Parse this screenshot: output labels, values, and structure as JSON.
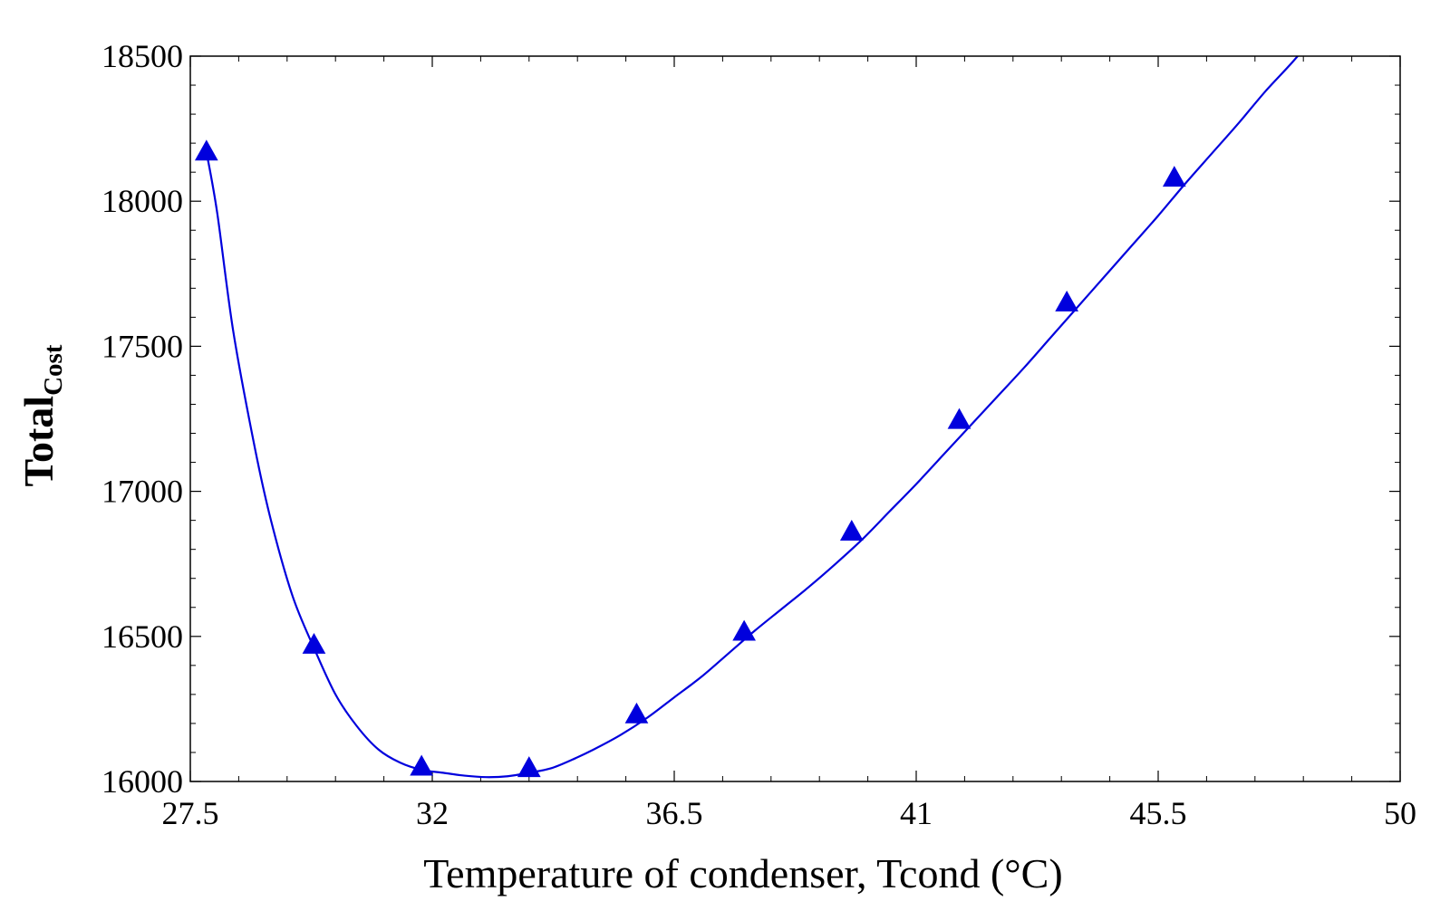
{
  "chart_data": {
    "type": "line",
    "title": "",
    "xlabel": "Temperature of condenser, Tcond (°C)",
    "ylabel": {
      "main": "Total",
      "subscript": "Cost"
    },
    "xlim": [
      27.5,
      50
    ],
    "ylim": [
      16000,
      18500
    ],
    "x_ticks": [
      27.5,
      32,
      36.5,
      41,
      45.5,
      50
    ],
    "x_tick_labels": [
      "27.5",
      "32",
      "36.5",
      "41",
      "45.5",
      "50"
    ],
    "y_ticks": [
      16000,
      16500,
      17000,
      17500,
      18000,
      18500
    ],
    "y_tick_labels": [
      "16000",
      "16500",
      "17000",
      "17500",
      "18000",
      "18500"
    ],
    "grid": false,
    "legend": "none",
    "series": [
      {
        "style": "line-with-markers",
        "marker": "triangle",
        "color": "#0000dd",
        "curve_x": [
          27.8,
          28.0,
          28.3,
          28.7,
          29.0,
          29.4,
          29.8,
          30.2,
          30.6,
          31.0,
          31.4,
          31.8,
          32.2,
          32.6,
          33.0,
          33.4,
          33.8,
          34.2,
          34.6,
          35.0,
          35.5,
          36.0,
          36.5,
          37.0,
          37.5,
          38.0,
          38.5,
          39.0,
          39.5,
          40.0,
          40.5,
          41.0,
          41.5,
          42.0,
          42.5,
          43.0,
          43.5,
          44.0,
          44.5,
          45.0,
          45.5,
          46.0,
          46.5,
          47.0,
          47.5,
          48.0,
          48.5
        ],
        "curve_y": [
          18170,
          17960,
          17550,
          17150,
          16900,
          16640,
          16460,
          16300,
          16190,
          16110,
          16065,
          16040,
          16030,
          16020,
          16015,
          16018,
          16030,
          16045,
          16075,
          16110,
          16160,
          16220,
          16290,
          16360,
          16440,
          16520,
          16595,
          16670,
          16750,
          16835,
          16930,
          17025,
          17125,
          17225,
          17325,
          17425,
          17530,
          17635,
          17740,
          17845,
          17950,
          18060,
          18165,
          18270,
          18380,
          18480,
          18590
        ],
        "points_x": [
          27.8,
          29.8,
          31.8,
          33.8,
          35.8,
          37.8,
          39.8,
          41.8,
          43.8,
          45.8
        ],
        "points_y": [
          18170,
          16470,
          16050,
          16045,
          16230,
          16515,
          16860,
          17245,
          17650,
          18080
        ]
      }
    ]
  }
}
